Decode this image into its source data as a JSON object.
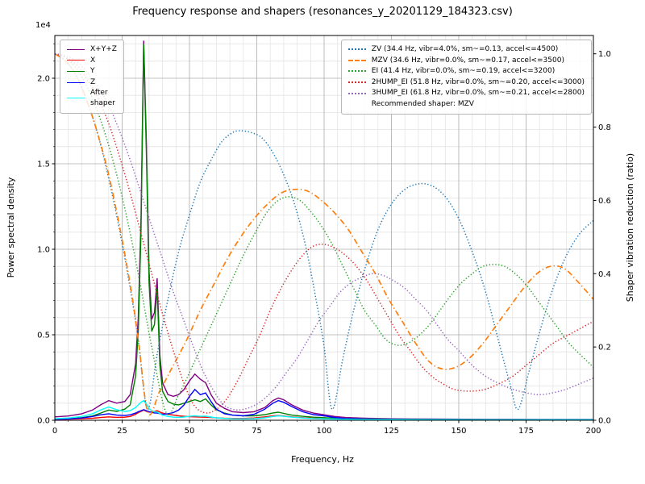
{
  "title": "Frequency response and shapers (resonances_y_20201129_184323.csv)",
  "chart_data": {
    "type": "line",
    "xlabel": "Frequency, Hz",
    "ylabel_left": "Power spectral density",
    "ylabel_right": "Shaper vibration reduction (ratio)",
    "x_range": [
      0,
      200
    ],
    "x_major_ticks": [
      0,
      25,
      50,
      75,
      100,
      125,
      150,
      175,
      200
    ],
    "x_minor_step": 5,
    "y_left_range": [
      0,
      22500
    ],
    "y_left_major_ticks": [
      0,
      5000,
      10000,
      15000,
      20000
    ],
    "y_left_tick_labels": [
      "0.0",
      "0.5",
      "1.0",
      "1.5",
      "2.0"
    ],
    "y_left_offset_text": "1e4",
    "y_left_minor_step": 1000,
    "y_right_range": [
      0,
      1.05
    ],
    "y_right_major_ticks": [
      0,
      0.2,
      0.4,
      0.6,
      0.8,
      1.0
    ],
    "y_right_tick_labels": [
      "0.0",
      "0.2",
      "0.4",
      "0.6",
      "0.8",
      "1.0"
    ],
    "grid": true,
    "legend_left_position": "upper left",
    "legend_right_position": "upper right",
    "recommended_text": "Recommended shaper: MZV",
    "psd_x": [
      0,
      5,
      10,
      14,
      17,
      20,
      23,
      26,
      28,
      30,
      31,
      32,
      33,
      34,
      35,
      36,
      37,
      38,
      39,
      40,
      42,
      44,
      46,
      48,
      50,
      52,
      54,
      56,
      58,
      60,
      63,
      66,
      70,
      74,
      78,
      81,
      83,
      85,
      88,
      92,
      96,
      100,
      104,
      108,
      115,
      125,
      140,
      160,
      180,
      200
    ],
    "psd_series": [
      {
        "name": "X+Y+Z",
        "color": "#800080",
        "style": "solid",
        "values": [
          200,
          250,
          380,
          600,
          900,
          1150,
          1000,
          1100,
          1500,
          3300,
          6000,
          11800,
          22200,
          16200,
          8700,
          5900,
          6300,
          8300,
          3800,
          2200,
          1500,
          1400,
          1500,
          1800,
          2300,
          2700,
          2400,
          2200,
          1500,
          1000,
          700,
          500,
          450,
          500,
          750,
          1150,
          1300,
          1200,
          900,
          600,
          420,
          320,
          220,
          160,
          120,
          90,
          70,
          55,
          50,
          50
        ]
      },
      {
        "name": "X",
        "color": "#ff0000",
        "style": "solid",
        "values": [
          60,
          70,
          90,
          120,
          160,
          200,
          170,
          180,
          220,
          350,
          450,
          520,
          600,
          520,
          480,
          500,
          520,
          560,
          480,
          420,
          350,
          300,
          260,
          230,
          210,
          200,
          190,
          180,
          160,
          140,
          120,
          110,
          110,
          130,
          200,
          260,
          280,
          250,
          200,
          150,
          120,
          100,
          80,
          70,
          60,
          50,
          40,
          35,
          35,
          35
        ]
      },
      {
        "name": "Y",
        "color": "#008000",
        "style": "solid",
        "values": [
          80,
          100,
          150,
          250,
          420,
          600,
          520,
          650,
          900,
          2600,
          5200,
          11000,
          22000,
          15500,
          8000,
          5200,
          5600,
          7700,
          3200,
          1700,
          1100,
          950,
          900,
          1000,
          1100,
          1200,
          1100,
          1250,
          900,
          620,
          420,
          300,
          260,
          260,
          330,
          430,
          470,
          400,
          300,
          230,
          180,
          150,
          120,
          100,
          80,
          60,
          50,
          40,
          35,
          35
        ]
      },
      {
        "name": "Z",
        "color": "#0000ff",
        "style": "solid",
        "values": [
          60,
          80,
          130,
          220,
          320,
          380,
          300,
          280,
          320,
          420,
          500,
          560,
          620,
          560,
          500,
          460,
          430,
          420,
          380,
          350,
          380,
          450,
          600,
          900,
          1400,
          1800,
          1500,
          1600,
          1100,
          650,
          380,
          300,
          260,
          350,
          650,
          1000,
          1150,
          1050,
          800,
          500,
          330,
          260,
          160,
          100,
          70,
          55,
          45,
          35,
          35,
          35
        ]
      },
      {
        "name": "After\nshaper",
        "color": "#00ffff",
        "style": "solid",
        "values": [
          90,
          130,
          220,
          380,
          600,
          780,
          620,
          520,
          560,
          750,
          900,
          1050,
          1150,
          950,
          700,
          550,
          500,
          480,
          380,
          300,
          220,
          180,
          170,
          190,
          230,
          260,
          230,
          240,
          190,
          140,
          110,
          90,
          85,
          95,
          140,
          220,
          260,
          230,
          180,
          130,
          100,
          85,
          70,
          60,
          50,
          45,
          40,
          35,
          35,
          35
        ]
      }
    ],
    "shaper_series": [
      {
        "name": "ZV",
        "label": "ZV (34.4 Hz, vibr=4.0%, sm~=0.13, accel<=4500)",
        "color": "#1f77b4",
        "style": "dotted",
        "x": [
          0,
          4,
          8,
          12,
          16,
          20,
          24,
          28,
          31,
          34.4,
          38,
          42,
          46,
          50,
          54,
          58,
          62,
          66,
          69,
          73,
          77,
          81,
          85,
          89,
          93,
          97,
          100,
          103,
          107,
          111,
          115,
          120,
          125,
          130,
          135,
          140,
          145,
          150,
          155,
          160,
          165,
          169,
          172,
          176,
          180,
          185,
          190,
          195,
          200
        ],
        "values": [
          1.0,
          0.98,
          0.94,
          0.87,
          0.78,
          0.66,
          0.52,
          0.36,
          0.22,
          0.03,
          0.18,
          0.33,
          0.46,
          0.56,
          0.65,
          0.71,
          0.76,
          0.785,
          0.79,
          0.785,
          0.77,
          0.73,
          0.67,
          0.59,
          0.48,
          0.33,
          0.2,
          0.03,
          0.17,
          0.3,
          0.41,
          0.52,
          0.59,
          0.63,
          0.645,
          0.64,
          0.61,
          0.55,
          0.46,
          0.35,
          0.21,
          0.1,
          0.03,
          0.13,
          0.24,
          0.36,
          0.45,
          0.51,
          0.545
        ]
      },
      {
        "name": "MZV",
        "label": "MZV (34.6 Hz, vibr=0.0%, sm~=0.17, accel<=3500)",
        "color": "#ff7f0e",
        "style": "dashdot",
        "x": [
          0,
          4,
          8,
          12,
          16,
          20,
          24,
          28,
          31,
          34.6,
          39,
          44,
          49,
          54,
          59,
          64,
          69,
          74,
          79,
          84,
          89,
          94,
          99,
          104,
          109,
          114,
          119,
          124,
          129,
          134,
          139,
          144,
          149,
          154,
          159,
          164,
          169,
          174,
          179,
          184,
          189,
          194,
          200
        ],
        "values": [
          1.0,
          0.98,
          0.94,
          0.87,
          0.78,
          0.67,
          0.53,
          0.37,
          0.22,
          0.02,
          0.08,
          0.15,
          0.22,
          0.3,
          0.37,
          0.44,
          0.5,
          0.55,
          0.59,
          0.62,
          0.63,
          0.625,
          0.6,
          0.565,
          0.52,
          0.46,
          0.4,
          0.33,
          0.27,
          0.21,
          0.16,
          0.14,
          0.145,
          0.17,
          0.21,
          0.26,
          0.31,
          0.36,
          0.4,
          0.42,
          0.415,
          0.38,
          0.33
        ]
      },
      {
        "name": "EI",
        "label": "EI (41.4 Hz, vibr=0.0%, sm~=0.19, accel<=3200)",
        "color": "#2ca02c",
        "style": "dotted",
        "x": [
          0,
          4,
          8,
          12,
          16,
          20,
          24,
          28,
          32,
          36,
          41.4,
          46,
          50,
          55,
          60,
          65,
          70,
          75,
          79,
          83,
          87,
          91,
          95,
          99,
          103,
          107,
          111,
          115,
          119,
          123,
          127,
          131,
          135,
          139,
          143,
          147,
          151,
          155,
          159,
          163,
          167,
          171,
          175,
          179,
          183,
          187,
          191,
          195,
          200
        ],
        "values": [
          1.0,
          0.99,
          0.96,
          0.91,
          0.84,
          0.75,
          0.64,
          0.51,
          0.36,
          0.2,
          0.02,
          0.07,
          0.13,
          0.21,
          0.29,
          0.37,
          0.45,
          0.52,
          0.57,
          0.6,
          0.61,
          0.6,
          0.57,
          0.53,
          0.48,
          0.42,
          0.36,
          0.3,
          0.26,
          0.22,
          0.205,
          0.21,
          0.23,
          0.26,
          0.3,
          0.34,
          0.375,
          0.4,
          0.42,
          0.425,
          0.42,
          0.4,
          0.37,
          0.33,
          0.29,
          0.25,
          0.21,
          0.18,
          0.145
        ]
      },
      {
        "name": "2HUMP_EI",
        "label": "2HUMP_EI (51.8 Hz, vibr=0.0%, sm~=0.20, accel<=3000)",
        "color": "#d62728",
        "style": "dotted",
        "x": [
          0,
          4,
          8,
          12,
          16,
          20,
          24,
          28,
          32,
          36,
          40,
          44,
          48,
          51.8,
          56,
          60,
          64,
          68,
          72,
          76,
          80,
          84,
          88,
          92,
          96,
          100,
          104,
          108,
          112,
          116,
          120,
          124,
          128,
          132,
          136,
          140,
          144,
          148,
          152,
          156,
          160,
          165,
          170,
          175,
          180,
          185,
          190,
          195,
          200
        ],
        "values": [
          1.0,
          0.99,
          0.97,
          0.93,
          0.88,
          0.81,
          0.72,
          0.62,
          0.51,
          0.4,
          0.29,
          0.19,
          0.1,
          0.04,
          0.02,
          0.03,
          0.06,
          0.11,
          0.17,
          0.23,
          0.3,
          0.36,
          0.41,
          0.45,
          0.475,
          0.48,
          0.47,
          0.45,
          0.42,
          0.38,
          0.33,
          0.28,
          0.23,
          0.19,
          0.15,
          0.12,
          0.1,
          0.085,
          0.08,
          0.08,
          0.085,
          0.1,
          0.12,
          0.15,
          0.18,
          0.21,
          0.23,
          0.25,
          0.27
        ]
      },
      {
        "name": "3HUMP_EI",
        "label": "3HUMP_EI (61.8 Hz, vibr=0.0%, sm~=0.21, accel<=2800)",
        "color": "#9467bd",
        "style": "dotted",
        "x": [
          0,
          4,
          8,
          12,
          16,
          20,
          24,
          28,
          32,
          36,
          40,
          44,
          48,
          52,
          56,
          61.8,
          66,
          70,
          74,
          78,
          82,
          86,
          90,
          94,
          98,
          102,
          106,
          110,
          114,
          118,
          122,
          126,
          130,
          134,
          138,
          142,
          146,
          150,
          155,
          160,
          165,
          170,
          175,
          180,
          185,
          190,
          195,
          200
        ],
        "values": [
          1.0,
          0.995,
          0.98,
          0.95,
          0.91,
          0.86,
          0.79,
          0.71,
          0.62,
          0.53,
          0.44,
          0.35,
          0.27,
          0.19,
          0.12,
          0.05,
          0.03,
          0.03,
          0.04,
          0.06,
          0.09,
          0.13,
          0.17,
          0.22,
          0.27,
          0.31,
          0.35,
          0.375,
          0.39,
          0.4,
          0.395,
          0.38,
          0.36,
          0.33,
          0.3,
          0.26,
          0.22,
          0.19,
          0.15,
          0.12,
          0.1,
          0.085,
          0.075,
          0.07,
          0.075,
          0.085,
          0.1,
          0.115
        ]
      }
    ]
  }
}
